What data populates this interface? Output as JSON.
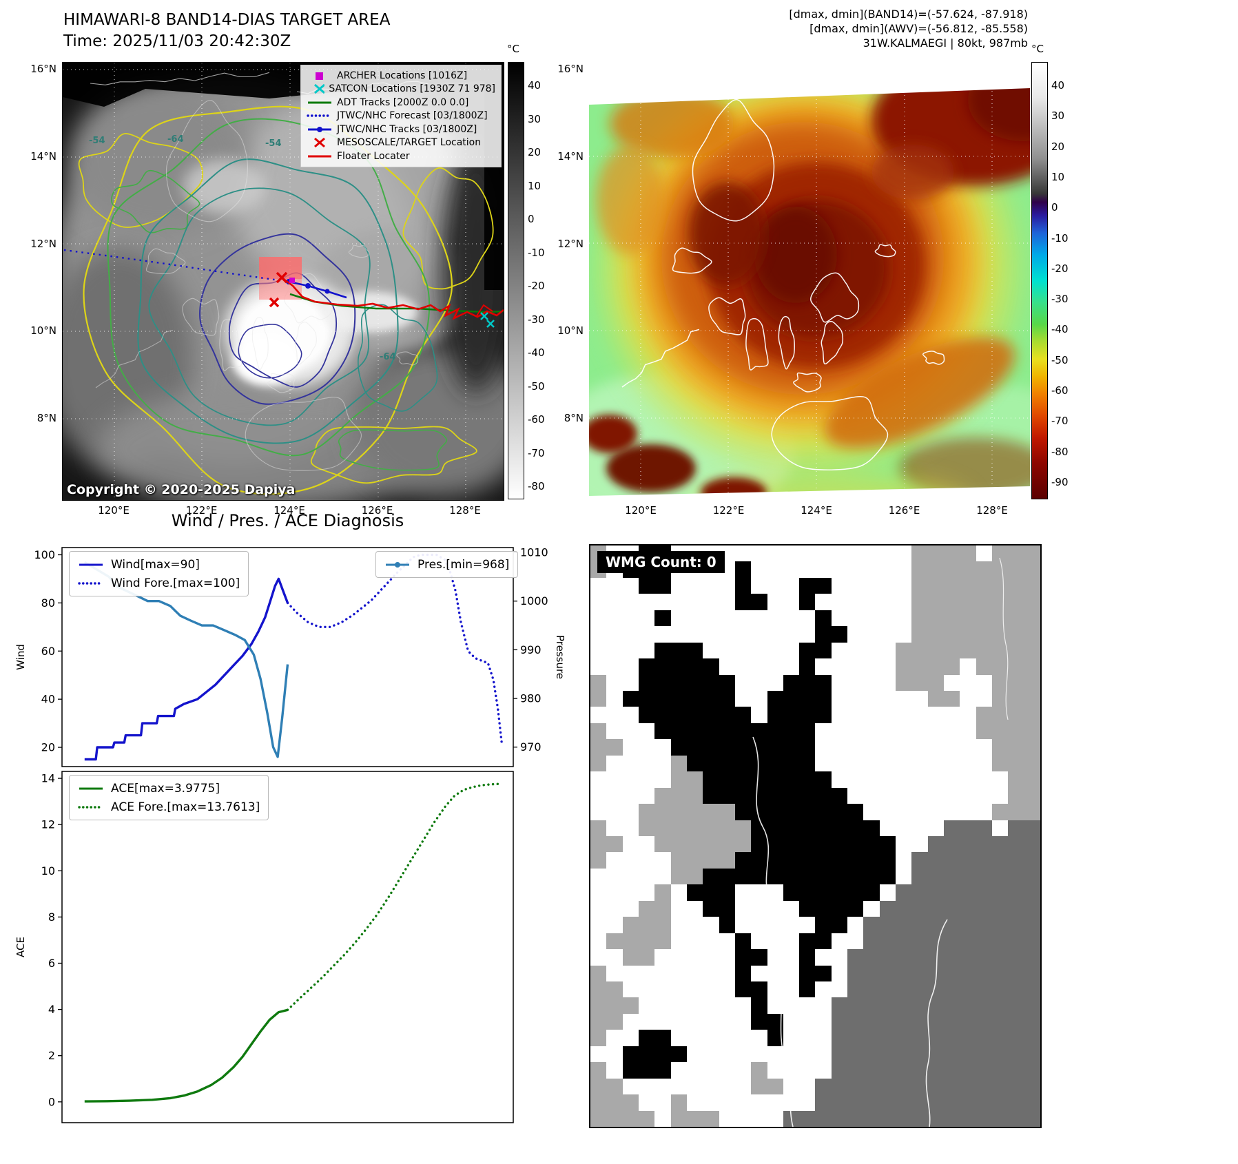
{
  "left_panel": {
    "title": "HIMAWARI-8 BAND14-DIAS TARGET AREA",
    "time_line": "Time: 2025/11/03 20:42:30Z",
    "copyright": "Copyright © 2020-2025 Dapiya",
    "colorbar": {
      "unit": "°C",
      "ticks": [
        "40",
        "30",
        "20",
        "10",
        "0",
        "-10",
        "-20",
        "-30",
        "-40",
        "-50",
        "-60",
        "-70",
        "-80"
      ]
    },
    "lat_ticks": [
      "16°N",
      "14°N",
      "12°N",
      "10°N",
      "8°N"
    ],
    "lon_ticks": [
      "120°E",
      "122°E",
      "124°E",
      "126°E",
      "128°E"
    ],
    "contour_labels": [
      "-54",
      "-64",
      "-54",
      "-64"
    ],
    "legend": [
      {
        "label": "ARCHER Locations [1016Z]",
        "marker": "square",
        "color": "#cc00d0"
      },
      {
        "label": "SATCON Locations [1930Z 71 978]",
        "marker": "x",
        "color": "#00c8c8"
      },
      {
        "label": "ADT Tracks [2000Z 0.0 0.0]",
        "marker": "line",
        "color": "#0a7a0a"
      },
      {
        "label": "JTWC/NHC Forecast [03/1800Z]",
        "marker": "dotted",
        "color": "#1212cc"
      },
      {
        "label": "JTWC/NHC Tracks [03/1800Z]",
        "marker": "line-dot",
        "color": "#1212cc"
      },
      {
        "label": "MESOSCALE/TARGET Location",
        "marker": "x",
        "color": "#e00000"
      },
      {
        "label": "Floater Locater",
        "marker": "line",
        "color": "#e00000"
      }
    ]
  },
  "right_panel": {
    "header_lines": [
      "[dmax, dmin](BAND14)=(-57.624, -87.918)",
      "[dmax, dmin](AWV)=(-56.812, -85.558)",
      "31W.KALMAEGI | 80kt, 987mb"
    ],
    "colorbar": {
      "unit": "°C",
      "ticks": [
        "40",
        "30",
        "20",
        "10",
        "0",
        "-10",
        "-20",
        "-30",
        "-40",
        "-50",
        "-60",
        "-70",
        "-80",
        "-90"
      ]
    },
    "lat_ticks": [
      "16°N",
      "14°N",
      "12°N",
      "10°N",
      "8°N"
    ],
    "lon_ticks": [
      "120°E",
      "122°E",
      "124°E",
      "126°E",
      "128°E"
    ]
  },
  "chart_data": [
    {
      "type": "line",
      "title": "Wind / Pres. / ACE Diagnosis",
      "ylabel_left": "Wind",
      "ylabel_right": "Pressure",
      "xlim": [
        0,
        1
      ],
      "ylim_left": [
        12,
        103
      ],
      "ylim_right": [
        966,
        1011
      ],
      "yticks_left": [
        20,
        40,
        60,
        80,
        100
      ],
      "yticks_right": [
        970,
        980,
        990,
        1000,
        1010
      ],
      "grid": false,
      "legend_left": [
        {
          "label": "Wind[max=90]",
          "marker": "line",
          "color": "#1414cc"
        },
        {
          "label": "Wind Fore.[max=100]",
          "marker": "dotted",
          "color": "#1414cc"
        }
      ],
      "legend_right": [
        {
          "label": "Pres.[min=968]",
          "marker": "line-dot",
          "color": "#2f7fb5"
        }
      ],
      "series": [
        {
          "name": "Wind",
          "axis": "left",
          "style": "solid",
          "color": "#1414cc",
          "x": [
            0.05,
            0.075,
            0.078,
            0.113,
            0.116,
            0.138,
            0.141,
            0.175,
            0.178,
            0.21,
            0.213,
            0.248,
            0.251,
            0.27,
            0.3,
            0.32,
            0.34,
            0.36,
            0.38,
            0.4,
            0.42,
            0.435,
            0.45,
            0.462,
            0.472,
            0.48,
            0.49,
            0.5
          ],
          "y": [
            15,
            15,
            20,
            20,
            22,
            22,
            25,
            25,
            30,
            30,
            33,
            33,
            36,
            38,
            40,
            43,
            46,
            50,
            54,
            58,
            63,
            68,
            74,
            81,
            87,
            90,
            85,
            80
          ]
        },
        {
          "name": "Wind Fore.",
          "axis": "left",
          "style": "dotted",
          "color": "#1414cc",
          "x": [
            0.5,
            0.52,
            0.545,
            0.57,
            0.595,
            0.62,
            0.645,
            0.665,
            0.685,
            0.705,
            0.725,
            0.745,
            0.762,
            0.778,
            0.795,
            0.812,
            0.83,
            0.848,
            0.86,
            0.872,
            0.884,
            0.9,
            0.916,
            0.93,
            0.944,
            0.956,
            0.966,
            0.975
          ],
          "y": [
            80,
            76,
            72,
            70,
            70,
            72,
            75,
            78,
            81,
            85,
            89,
            93,
            96,
            99,
            100,
            100,
            100,
            98,
            93,
            85,
            72,
            60,
            57,
            56,
            55,
            48,
            36,
            21
          ]
        },
        {
          "name": "Pres.",
          "axis": "right",
          "style": "solid",
          "color": "#2f7fb5",
          "x": [
            0.05,
            0.068,
            0.086,
            0.104,
            0.122,
            0.145,
            0.168,
            0.19,
            0.215,
            0.24,
            0.262,
            0.285,
            0.31,
            0.335,
            0.36,
            0.385,
            0.405,
            0.425,
            0.44,
            0.455,
            0.468,
            0.478,
            0.488,
            0.5
          ],
          "y": [
            1008,
            1007,
            1006,
            1005,
            1003,
            1002,
            1001,
            1000,
            1000,
            999,
            997,
            996,
            995,
            995,
            994,
            993,
            992,
            989,
            984,
            977,
            970,
            968,
            976,
            987
          ]
        }
      ]
    },
    {
      "type": "line",
      "ylabel_left": "ACE",
      "xlim": [
        0,
        1
      ],
      "ylim_left": [
        -0.9,
        14.3
      ],
      "yticks_left": [
        0,
        2,
        4,
        6,
        8,
        10,
        12,
        14
      ],
      "grid": false,
      "legend_left": [
        {
          "label": "ACE[max=3.9775]",
          "marker": "line",
          "color": "#0f7a0f"
        },
        {
          "label": "ACE Fore.[max=13.7613]",
          "marker": "dotted",
          "color": "#0f7a0f"
        }
      ],
      "series": [
        {
          "name": "ACE",
          "axis": "left",
          "style": "solid",
          "color": "#0f7a0f",
          "x": [
            0.05,
            0.1,
            0.15,
            0.2,
            0.24,
            0.27,
            0.3,
            0.33,
            0.355,
            0.38,
            0.4,
            0.42,
            0.44,
            0.46,
            0.48,
            0.5
          ],
          "y": [
            0.02,
            0.03,
            0.05,
            0.09,
            0.16,
            0.27,
            0.45,
            0.72,
            1.05,
            1.5,
            1.95,
            2.5,
            3.05,
            3.55,
            3.88,
            3.98
          ]
        },
        {
          "name": "ACE Fore.",
          "axis": "left",
          "style": "dotted",
          "color": "#0f7a0f",
          "x": [
            0.5,
            0.525,
            0.55,
            0.575,
            0.6,
            0.625,
            0.65,
            0.675,
            0.7,
            0.725,
            0.75,
            0.775,
            0.8,
            0.825,
            0.85,
            0.87,
            0.89,
            0.91,
            0.93,
            0.95,
            0.97
          ],
          "y": [
            3.98,
            4.45,
            4.9,
            5.35,
            5.85,
            6.35,
            6.9,
            7.5,
            8.15,
            8.9,
            9.7,
            10.5,
            11.3,
            12.1,
            12.8,
            13.25,
            13.5,
            13.62,
            13.7,
            13.74,
            13.76
          ]
        }
      ]
    }
  ],
  "wmg": {
    "label": "WMG Count: 0",
    "palette": {
      ".": "#ffffff",
      "g": "#a9a9a9",
      "d": "#6e6e6e",
      "b": "#000000"
    },
    "grid": [
      "g..bb...............gggg.ggg",
      "g.bbb....b..........gggggggg",
      "...bb....b...bb.....gggggggg",
      ".........bb..b......gggggggg",
      "....b.........b.....gggggggg",
      "..............bb....gggggggg",
      "....bbb......bb....ggggggggg",
      "...bbbbb.....b.....gggg.gggg",
      "g..bbbbbb...bbb....ggg...ggg",
      "g.bbbbbbb..bbbb......gg..ggg",
      "...bbbbbbb.bbbb.........gggg",
      "g...bbbbbbbbbb..........gggg",
      "gg...bbbbbbbbb...........ggg",
      "g....gbbbbbbbb...........ggg",
      ".....ggbbbbbbbb...........gg",
      "....gggbbbbbbbbb..........gg",
      "...ggggggbbbbbbbb........ggg",
      "g..gggggggbbbbbbbb....ddd.dd",
      "gg..ggggggbbbbbbbbb..ddddddd",
      "g....ggggbbbbbbbbbb.dddddddd",
      ".....ggbbbbbbbbbbbb.dddddddd",
      "....g.bbb...bbbbbb.ddddddddd",
      "...gg..bb....bbbb.dddddddddd",
      "..ggg...b.....bb.ddddddddddd",
      ".gggg....b...bb..ddddddddddd",
      "..gg.....bb..b..dddddddddddd",
      "g........b...bb.dddddddddddd",
      "gg.......bb..b..dddddddddddd",
      "ggg.......b....ddddddddddddd",
      "gg........bb...ddddddddddddd",
      "g..bb......b...ddddddddddddd",
      "..bbbb.........ddddddddddddd",
      "g.bbb.....g....ddddddddddddd",
      "gg........gg..dddddddddddddd",
      "ggg..g........dddddddddddddd",
      "gggg.ggg....dddddddddddddddd"
    ]
  }
}
